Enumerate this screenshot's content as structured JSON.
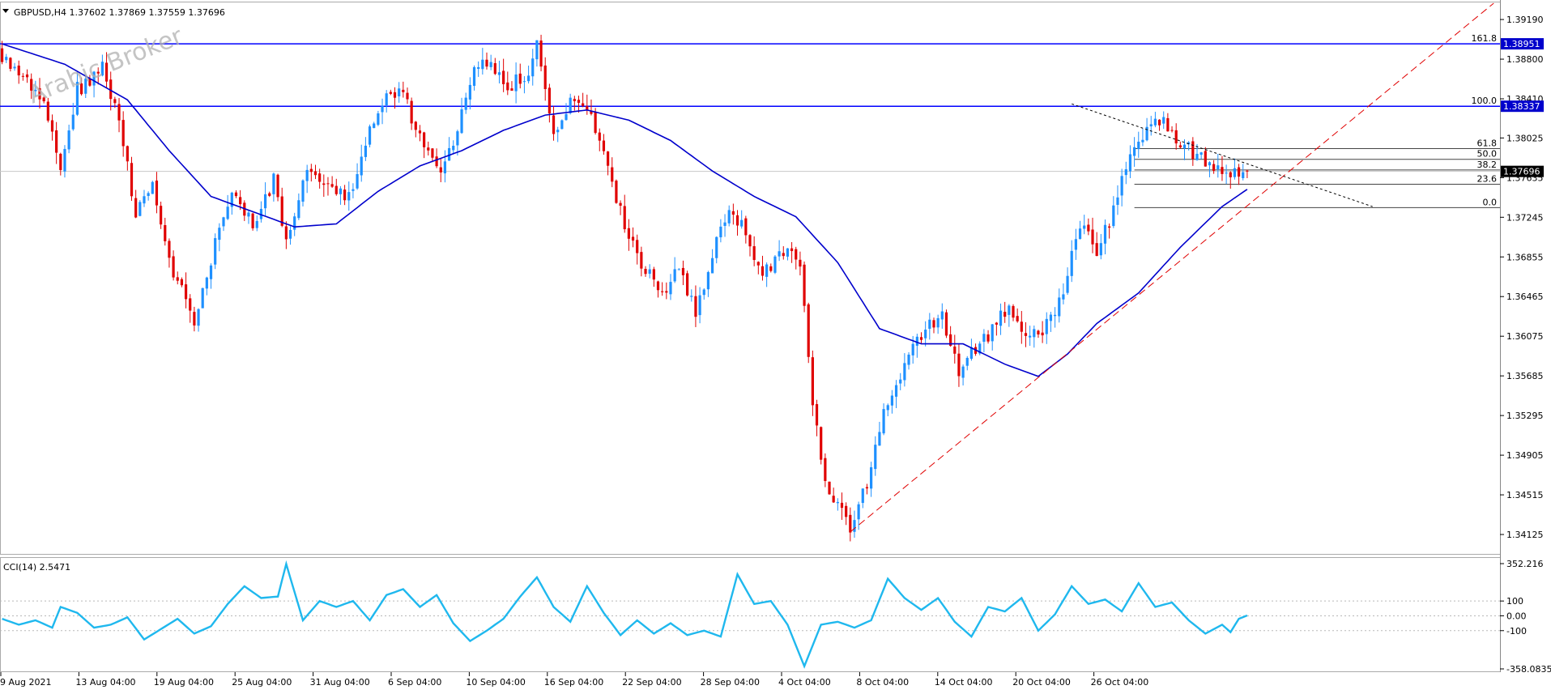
{
  "header": {
    "symbol_line": "GBPUSD,H4  1.37602 1.37869 1.37559 1.37696",
    "watermark": "Arabic Broker"
  },
  "colors": {
    "bull": "#1e90ff",
    "bear": "#e00000",
    "ma": "#0000cc",
    "level_line": "#0000ff",
    "fib_line": "#444444",
    "trend_red": "#e00000",
    "cci": "#1fb8ee",
    "price_tag": "#0000cc"
  },
  "chart_data": [
    {
      "type": "candlestick",
      "symbol": "GBPUSD",
      "timeframe": "H4",
      "ylim": [
        1.3395,
        1.3935
      ],
      "y_ticks": [
        "1.39190",
        "1.38800",
        "1.38410",
        "1.38025",
        "1.37635",
        "1.37245",
        "1.36855",
        "1.36465",
        "1.36075",
        "1.35685",
        "1.35295",
        "1.34905",
        "1.34515",
        "1.34125"
      ],
      "x_ticks": [
        "9 Aug 2021",
        "13 Aug 04:00",
        "19 Aug 04:00",
        "25 Aug 04:00",
        "31 Aug 04:00",
        "6 Sep 04:00",
        "10 Sep 04:00",
        "16 Sep 04:00",
        "22 Sep 04:00",
        "28 Sep 04:00",
        "4 Oct 04:00",
        "8 Oct 04:00",
        "14 Oct 04:00",
        "20 Oct 04:00",
        "26 Oct 04:00"
      ],
      "close_path": [
        [
          0,
          1.388
        ],
        [
          5,
          1.386
        ],
        [
          10,
          1.3835
        ],
        [
          14,
          1.377
        ],
        [
          18,
          1.385
        ],
        [
          24,
          1.387
        ],
        [
          28,
          1.382
        ],
        [
          32,
          1.373
        ],
        [
          36,
          1.376
        ],
        [
          41,
          1.367
        ],
        [
          46,
          1.3625
        ],
        [
          51,
          1.37
        ],
        [
          55,
          1.3745
        ],
        [
          60,
          1.372
        ],
        [
          65,
          1.376
        ],
        [
          68,
          1.37
        ],
        [
          72,
          1.3765
        ],
        [
          78,
          1.3755
        ],
        [
          83,
          1.3745
        ],
        [
          88,
          1.381
        ],
        [
          92,
          1.385
        ],
        [
          96,
          1.3845
        ],
        [
          100,
          1.38
        ],
        [
          104,
          1.377
        ],
        [
          108,
          1.379
        ],
        [
          112,
          1.386
        ],
        [
          116,
          1.388
        ],
        [
          121,
          1.385
        ],
        [
          126,
          1.387
        ],
        [
          128,
          1.39
        ],
        [
          132,
          1.381
        ],
        [
          136,
          1.384
        ],
        [
          140,
          1.383
        ],
        [
          144,
          1.379
        ],
        [
          148,
          1.373
        ],
        [
          152,
          1.369
        ],
        [
          157,
          1.365
        ],
        [
          162,
          1.367
        ],
        [
          166,
          1.363
        ],
        [
          170,
          1.369
        ],
        [
          174,
          1.373
        ],
        [
          178,
          1.371
        ],
        [
          182,
          1.3665
        ],
        [
          186,
          1.369
        ],
        [
          191,
          1.368
        ],
        [
          194,
          1.3535
        ],
        [
          198,
          1.345
        ],
        [
          203,
          1.342
        ],
        [
          207,
          1.346
        ],
        [
          211,
          1.353
        ],
        [
          215,
          1.357
        ],
        [
          220,
          1.361
        ],
        [
          225,
          1.363
        ],
        [
          229,
          1.357
        ],
        [
          233,
          1.3595
        ],
        [
          237,
          1.3615
        ],
        [
          241,
          1.364
        ],
        [
          245,
          1.36
        ],
        [
          249,
          1.3615
        ],
        [
          254,
          1.365
        ],
        [
          258,
          1.372
        ],
        [
          262,
          1.369
        ],
        [
          266,
          1.373
        ],
        [
          270,
          1.379
        ],
        [
          274,
          1.381
        ],
        [
          278,
          1.382
        ],
        [
          282,
          1.38
        ],
        [
          286,
          1.3785
        ],
        [
          290,
          1.3775
        ],
        [
          294,
          1.3765
        ],
        [
          298,
          1.37696
        ]
      ],
      "moving_average": [
        [
          0,
          1.3895
        ],
        [
          15,
          1.3875
        ],
        [
          30,
          1.384
        ],
        [
          40,
          1.379
        ],
        [
          50,
          1.3745
        ],
        [
          60,
          1.373
        ],
        [
          70,
          1.3715
        ],
        [
          80,
          1.3718
        ],
        [
          90,
          1.375
        ],
        [
          100,
          1.3775
        ],
        [
          110,
          1.379
        ],
        [
          120,
          1.381
        ],
        [
          130,
          1.3825
        ],
        [
          140,
          1.383
        ],
        [
          150,
          1.382
        ],
        [
          160,
          1.38
        ],
        [
          170,
          1.377
        ],
        [
          180,
          1.3745
        ],
        [
          190,
          1.3725
        ],
        [
          200,
          1.368
        ],
        [
          210,
          1.3615
        ],
        [
          220,
          1.36
        ],
        [
          230,
          1.36
        ],
        [
          240,
          1.358
        ],
        [
          248,
          1.3568
        ],
        [
          255,
          1.359
        ],
        [
          262,
          1.362
        ],
        [
          272,
          1.365
        ],
        [
          282,
          1.3695
        ],
        [
          292,
          1.3735
        ],
        [
          298,
          1.3752
        ]
      ],
      "horizontal_levels": [
        {
          "label": "161.8",
          "price": 1.38951,
          "tag": "1.38951"
        },
        {
          "label": "100.0",
          "price": 1.38337,
          "tag": "1.38337"
        }
      ],
      "fibonacci": [
        {
          "label": "61.8",
          "price": 1.3792
        },
        {
          "label": "50.0",
          "price": 1.37815
        },
        {
          "label": "38.2",
          "price": 1.3771
        },
        {
          "label": "23.6",
          "price": 1.3757
        },
        {
          "label": "0.0",
          "price": 1.3734
        }
      ],
      "current_price": {
        "price": 1.37696,
        "tag": "1.37696"
      },
      "trendline_support": {
        "from": [
          203,
          1.3415
        ],
        "to": [
          357,
          1.3935
        ]
      },
      "trendline_resistance": {
        "from": [
          256,
          1.3836
        ],
        "to": [
          328,
          1.3735
        ]
      }
    },
    {
      "type": "line",
      "name": "CCI(14)",
      "title": "CCI(14) 2.5471",
      "ylim": [
        -358.0835,
        352.216
      ],
      "y_ticks": [
        "352.216",
        "100",
        "0.00",
        "-100",
        "-358.0835"
      ],
      "levels": [
        100,
        0,
        -100
      ],
      "values": [
        [
          0,
          -20
        ],
        [
          4,
          -60
        ],
        [
          8,
          -30
        ],
        [
          12,
          -80
        ],
        [
          14,
          60
        ],
        [
          18,
          20
        ],
        [
          22,
          -80
        ],
        [
          26,
          -60
        ],
        [
          30,
          -10
        ],
        [
          34,
          -160
        ],
        [
          38,
          -90
        ],
        [
          42,
          -20
        ],
        [
          46,
          -120
        ],
        [
          50,
          -70
        ],
        [
          54,
          80
        ],
        [
          58,
          200
        ],
        [
          62,
          120
        ],
        [
          66,
          130
        ],
        [
          68,
          350
        ],
        [
          72,
          -30
        ],
        [
          76,
          100
        ],
        [
          80,
          60
        ],
        [
          84,
          100
        ],
        [
          88,
          -30
        ],
        [
          92,
          140
        ],
        [
          96,
          180
        ],
        [
          100,
          60
        ],
        [
          104,
          140
        ],
        [
          108,
          -50
        ],
        [
          112,
          -170
        ],
        [
          116,
          -100
        ],
        [
          120,
          -20
        ],
        [
          124,
          130
        ],
        [
          128,
          260
        ],
        [
          132,
          60
        ],
        [
          136,
          -40
        ],
        [
          140,
          200
        ],
        [
          144,
          20
        ],
        [
          148,
          -130
        ],
        [
          152,
          -30
        ],
        [
          156,
          -120
        ],
        [
          160,
          -50
        ],
        [
          164,
          -130
        ],
        [
          168,
          -100
        ],
        [
          172,
          -140
        ],
        [
          176,
          280
        ],
        [
          180,
          80
        ],
        [
          184,
          100
        ],
        [
          188,
          -60
        ],
        [
          192,
          -340
        ],
        [
          196,
          -60
        ],
        [
          200,
          -40
        ],
        [
          204,
          -80
        ],
        [
          208,
          -30
        ],
        [
          212,
          250
        ],
        [
          216,
          120
        ],
        [
          220,
          40
        ],
        [
          224,
          120
        ],
        [
          228,
          -40
        ],
        [
          232,
          -140
        ],
        [
          236,
          60
        ],
        [
          240,
          30
        ],
        [
          244,
          120
        ],
        [
          248,
          -100
        ],
        [
          252,
          10
        ],
        [
          256,
          200
        ],
        [
          260,
          80
        ],
        [
          264,
          110
        ],
        [
          268,
          30
        ],
        [
          272,
          220
        ],
        [
          276,
          60
        ],
        [
          280,
          90
        ],
        [
          284,
          -30
        ],
        [
          288,
          -120
        ],
        [
          290,
          -90
        ],
        [
          292,
          -60
        ],
        [
          294,
          -110
        ],
        [
          296,
          -20
        ],
        [
          298,
          2.5471
        ]
      ]
    }
  ]
}
